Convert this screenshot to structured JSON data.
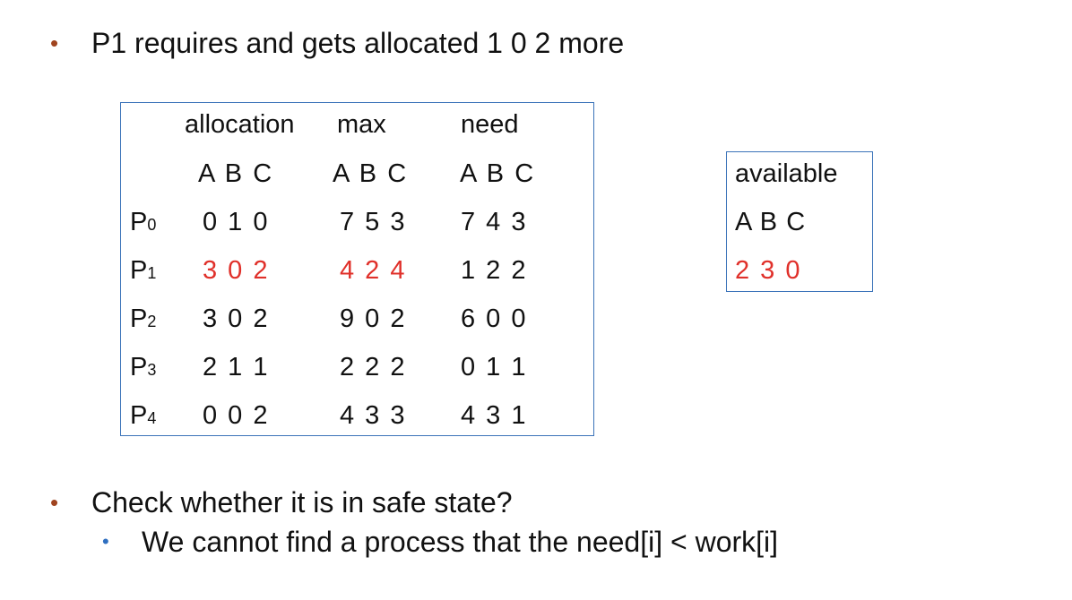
{
  "bullets": {
    "top": "P1 requires and gets allocated 1 0 2 more",
    "check": "Check whether it is in safe state?",
    "sub": "We cannot find a process that the need[i] < work[i]"
  },
  "table": {
    "headers": [
      "allocation",
      "max",
      "need"
    ],
    "subheaders": [
      "A B C",
      "A B C",
      "A B C"
    ],
    "rows": [
      {
        "p": "P",
        "sub": "0",
        "allocation": "0 1 0",
        "max": "7 5 3",
        "need": "7 4 3",
        "highlight": false
      },
      {
        "p": "P",
        "sub": "1",
        "allocation": "3 0 2",
        "max": "4 2 4",
        "need": "1 2 2",
        "highlight": true
      },
      {
        "p": "P",
        "sub": "2",
        "allocation": "3 0 2",
        "max": "9 0 2",
        "need": "6 0 0",
        "highlight": false
      },
      {
        "p": "P",
        "sub": "3",
        "allocation": "2 1 1",
        "max": "2 2 2",
        "need": "0 1 1",
        "highlight": false
      },
      {
        "p": "P",
        "sub": "4",
        "allocation": "0 0 2",
        "max": "4 3 3",
        "need": "4 3 1",
        "highlight": false
      }
    ]
  },
  "available": {
    "label": "available",
    "cols": "A B C",
    "value": "2 3 0"
  },
  "colors": {
    "highlight": "#e0302a",
    "border": "#3b73b9",
    "bullet_main": "#a0441f",
    "bullet_sub": "#2f6fc0"
  }
}
